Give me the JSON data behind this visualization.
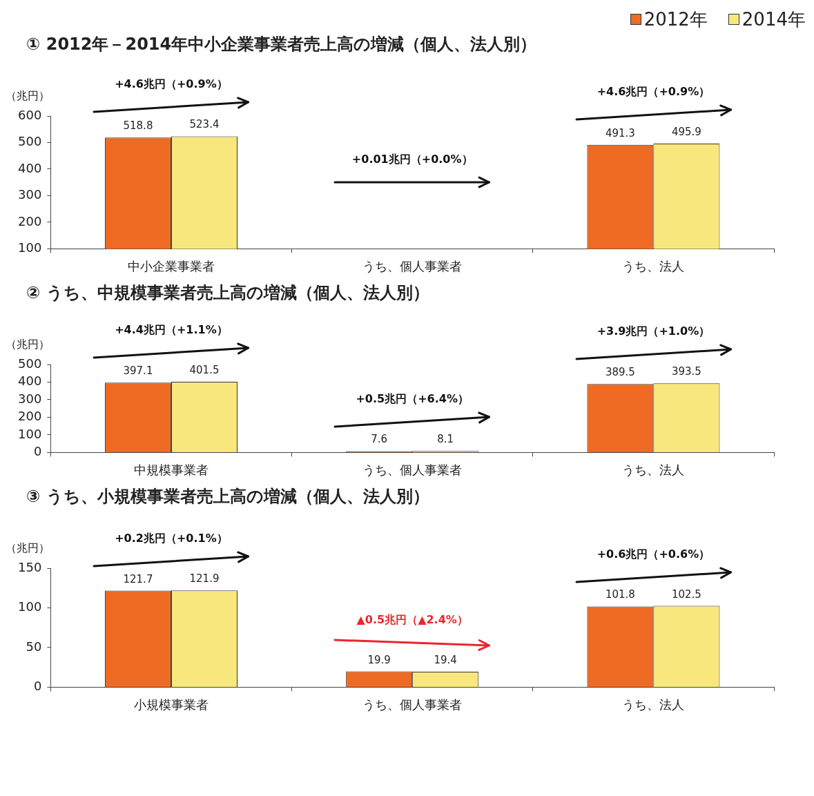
{
  "chart_data": [
    {
      "type": "bar",
      "title": "① 2012年－2014年中小企業事業者売上高の増減（個人、法人別）",
      "ylabel": "（兆円）",
      "categories": [
        "中小企業事業者",
        "うち、個人事業者",
        "うち、法人"
      ],
      "series": [
        {
          "name": "2012年",
          "color": "#ef6a22",
          "values": [
            518.8,
            null,
            491.3
          ]
        },
        {
          "name": "2014年",
          "color": "#f8e77c",
          "values": [
            523.4,
            null,
            495.9
          ]
        }
      ],
      "ylim": [
        100,
        600
      ],
      "yticks": [
        100,
        200,
        300,
        400,
        500,
        600
      ],
      "data_labels": true,
      "legend": "top right",
      "annotations": [
        "+4.6兆円（+0.9%）",
        "+0.01兆円（+0.0%）",
        "+4.6兆円（+0.9%）"
      ]
    },
    {
      "type": "bar",
      "title": "② うち、中規模事業者売上高の増減（個人、法人別）",
      "ylabel": "（兆円）",
      "categories": [
        "中規模事業者",
        "うち、個人事業者",
        "うち、法人"
      ],
      "series": [
        {
          "color": "#ef6a22",
          "values": [
            397.1,
            7.6,
            389.5
          ]
        },
        {
          "color": "#f8e77c",
          "values": [
            401.5,
            8.1,
            393.5
          ]
        }
      ],
      "ylim": [
        0,
        500
      ],
      "yticks": [
        0,
        100,
        200,
        300,
        400,
        500
      ],
      "data_labels": true,
      "annotations": [
        "+4.4兆円（+1.1%）",
        "+0.5兆円（+6.4%）",
        "+3.9兆円（+1.0%）"
      ]
    },
    {
      "type": "bar",
      "title": "③ うち、小規模事業者売上高の増減（個人、法人別）",
      "ylabel": "（兆円）",
      "categories": [
        "小規模事業者",
        "うち、個人事業者",
        "うち、法人"
      ],
      "series": [
        {
          "color": "#ef6a22",
          "values": [
            121.7,
            19.9,
            101.8
          ]
        },
        {
          "color": "#f8e77c",
          "values": [
            121.9,
            19.4,
            102.5
          ]
        }
      ],
      "ylim": [
        0,
        150
      ],
      "yticks": [
        0,
        50,
        100,
        150
      ],
      "data_labels": true,
      "annotations": [
        "+0.2兆円（+0.1%）",
        "▲0.5兆円（▲2.4%）",
        "+0.6兆円（+0.6%）"
      ]
    }
  ]
}
